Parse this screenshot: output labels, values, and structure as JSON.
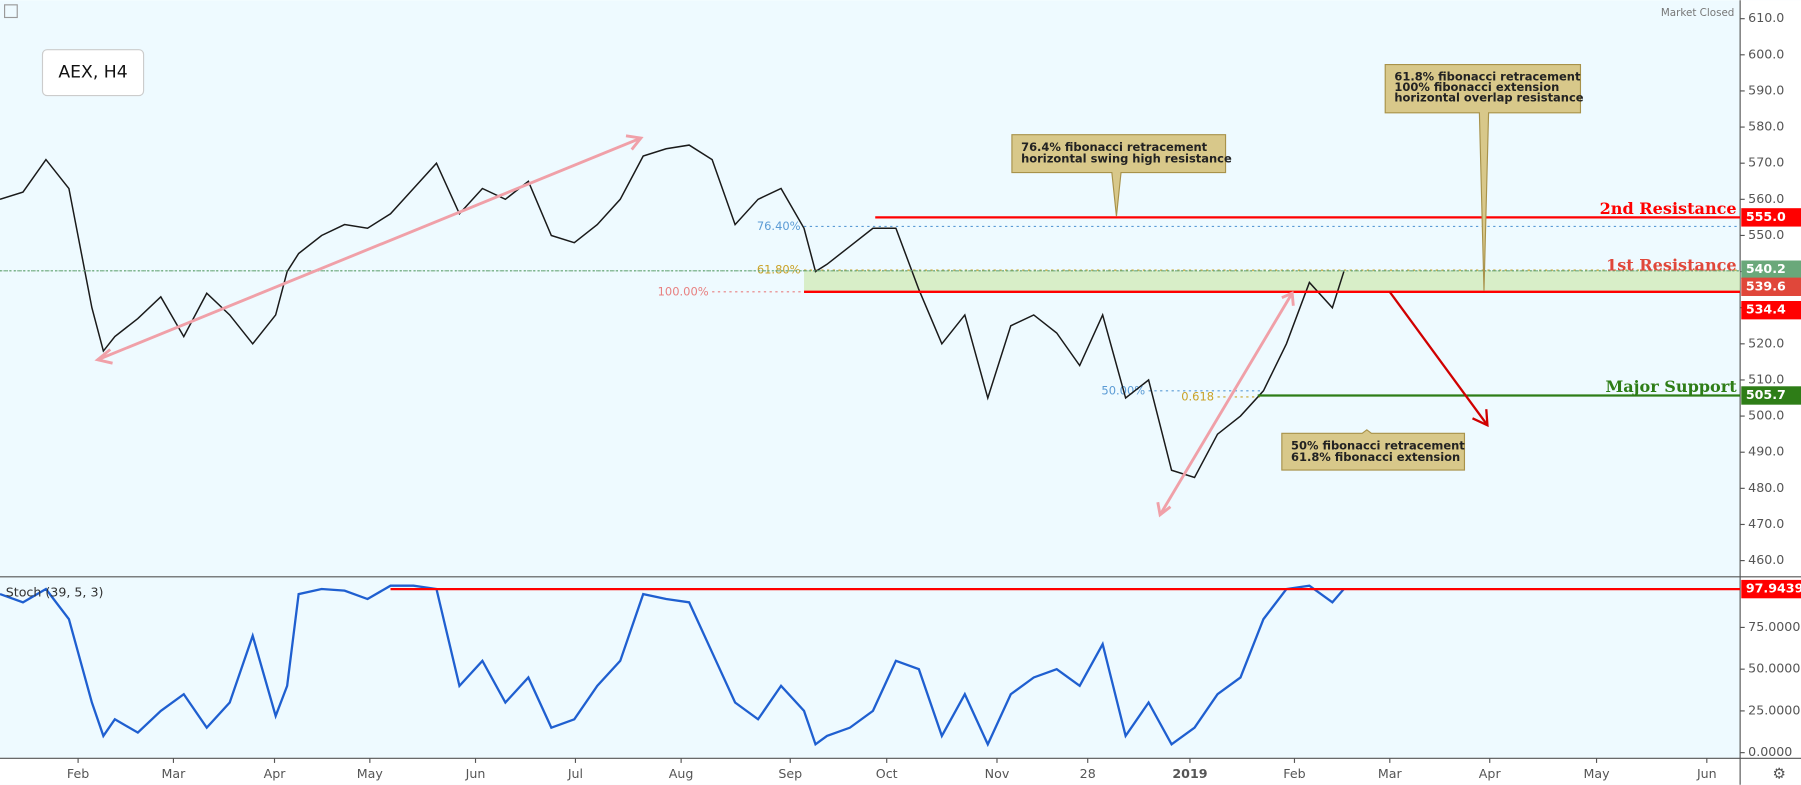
{
  "chart_data": [
    {
      "type": "line",
      "title": "AEX, H4",
      "status": "Market Closed",
      "color": "#1a1a1a",
      "x": [
        0,
        1,
        2,
        3,
        4,
        4.5,
        5,
        6,
        7,
        8,
        9,
        10,
        11,
        12,
        12.5,
        13,
        14,
        15,
        16,
        17,
        18,
        19,
        20,
        21,
        22,
        23,
        24,
        25,
        26,
        27,
        28,
        29,
        30,
        31,
        32,
        33,
        34,
        35,
        35.5,
        36,
        37,
        38,
        39,
        40,
        41,
        42,
        43,
        44,
        45,
        46,
        47,
        48,
        49,
        50,
        51,
        52,
        53,
        54,
        55,
        56,
        57,
        58,
        58.5
      ],
      "values": [
        560,
        562,
        571,
        563,
        530,
        518,
        522,
        527,
        533,
        522,
        534,
        528,
        520,
        528,
        540,
        545,
        550,
        553,
        552,
        556,
        563,
        570,
        556,
        563,
        560,
        565,
        550,
        548,
        553,
        560,
        572,
        574,
        575,
        571,
        553,
        560,
        563,
        552,
        540,
        542,
        547,
        552,
        552,
        535,
        520,
        528,
        505,
        525,
        528,
        523,
        514,
        528,
        505,
        510,
        485,
        483,
        495,
        500,
        507,
        520,
        537,
        530,
        540
      ],
      "xlim": [
        0,
        75.75
      ],
      "xticks": [
        {
          "value": 3.4,
          "label": "Feb"
        },
        {
          "value": 7.55,
          "label": "Mar"
        },
        {
          "value": 11.95,
          "label": "Apr"
        },
        {
          "value": 16.1,
          "label": "May"
        },
        {
          "value": 20.7,
          "label": "Jun"
        },
        {
          "value": 25.05,
          "label": "Jul"
        },
        {
          "value": 29.65,
          "label": "Aug"
        },
        {
          "value": 34.4,
          "label": "Sep"
        },
        {
          "value": 38.6,
          "label": "Oct"
        },
        {
          "value": 43.4,
          "label": "Nov"
        },
        {
          "value": 47.35,
          "label": "28"
        },
        {
          "value": 51.8,
          "label": "2019"
        },
        {
          "value": 56.35,
          "label": "Feb"
        },
        {
          "value": 60.5,
          "label": "Mar"
        },
        {
          "value": 64.85,
          "label": "Apr"
        },
        {
          "value": 69.5,
          "label": "May"
        },
        {
          "value": 74.3,
          "label": "Jun"
        }
      ],
      "ylim": [
        455.5,
        615.1
      ],
      "yticks": [
        {
          "value": 460,
          "label": "460.0"
        },
        {
          "value": 470,
          "label": "470.0"
        },
        {
          "value": 480,
          "label": "480.0"
        },
        {
          "value": 490,
          "label": "490.0"
        },
        {
          "value": 500,
          "label": "500.0"
        },
        {
          "value": 510,
          "label": "510.0"
        },
        {
          "value": 520,
          "label": "520.0"
        },
        {
          "value": 530,
          "label": "530.0"
        },
        {
          "value": 540,
          "label": "540.0"
        },
        {
          "value": 550,
          "label": "550.0"
        },
        {
          "value": 560,
          "label": "560.0"
        },
        {
          "value": 570,
          "label": "570.0"
        },
        {
          "value": 580,
          "label": "580.0"
        },
        {
          "value": 590,
          "label": "590.0"
        },
        {
          "value": 600,
          "label": "600.0"
        },
        {
          "value": 610,
          "label": "610.0"
        }
      ],
      "levels": [
        {
          "value": 555,
          "label": "555.0",
          "name": "2nd Resistance",
          "color": "#ff0000"
        },
        {
          "value": 540.2,
          "label": "540.2",
          "color": "#6aa87a"
        },
        {
          "value": 539.6,
          "label": "539.6",
          "name": "1st Resistance",
          "color": "#e0473a"
        },
        {
          "value": 534.4,
          "label": "534.4",
          "color": "#ff0000"
        },
        {
          "value": 505.7,
          "label": "505.7",
          "name": "Major Support",
          "color": "#2e7d17"
        }
      ],
      "fib_levels": [
        {
          "value": 552.5,
          "label": "76.40%",
          "color": "#5b9bd5"
        },
        {
          "value": 540.4,
          "label": "61.80%",
          "color": "#c9a227"
        },
        {
          "value": 534.4,
          "label": "100.00%",
          "color": "#e88080"
        },
        {
          "value": 507,
          "label": "50.00%",
          "color": "#5b9bd5"
        },
        {
          "value": 505.3,
          "label": "0.618",
          "color": "#c9a227"
        }
      ],
      "callouts": [
        {
          "lines": [
            "76.4% fibonacci retracement",
            "horizontal swing high resistance"
          ]
        },
        {
          "lines": [
            "61.8% fibonacci retracement",
            "100% fibonacci extension",
            "horizontal overlap resistance"
          ]
        },
        {
          "lines": [
            "50% fibonacci retracement",
            "61.8% fibonacci extension"
          ]
        }
      ]
    },
    {
      "type": "line",
      "title": "Stoch (39, 5, 3)",
      "color": "#1f5fd0",
      "x": [
        0,
        1,
        2,
        3,
        4,
        4.5,
        5,
        6,
        7,
        8,
        9,
        10,
        11,
        12,
        12.5,
        13,
        14,
        15,
        16,
        17,
        18,
        19,
        20,
        21,
        22,
        23,
        24,
        25,
        26,
        27,
        28,
        29,
        30,
        31,
        32,
        33,
        34,
        35,
        35.5,
        36,
        37,
        38,
        39,
        40,
        41,
        42,
        43,
        44,
        45,
        46,
        47,
        48,
        49,
        50,
        51,
        52,
        53,
        54,
        55,
        56,
        57,
        58,
        58.5
      ],
      "values": [
        95,
        90,
        98,
        80,
        30,
        10,
        20,
        12,
        25,
        35,
        15,
        30,
        70,
        22,
        40,
        95,
        98,
        97,
        92,
        100,
        100,
        98,
        40,
        55,
        30,
        45,
        15,
        20,
        40,
        55,
        95,
        92,
        90,
        60,
        30,
        20,
        40,
        25,
        5,
        10,
        15,
        25,
        55,
        50,
        10,
        35,
        5,
        35,
        45,
        50,
        40,
        65,
        10,
        30,
        5,
        15,
        35,
        45,
        80,
        98,
        100,
        90,
        98
      ],
      "xlim": [
        0,
        75.75
      ],
      "ylim": [
        -3.4,
        104.6
      ],
      "yticks": [
        {
          "value": 0,
          "label": "0.0000"
        },
        {
          "value": 25,
          "label": "25.0000"
        },
        {
          "value": 50,
          "label": "50.0000"
        },
        {
          "value": 75,
          "label": "75.0000"
        }
      ],
      "levels": [
        {
          "value": 97.9439,
          "label": "97.9439",
          "color": "#ff0000"
        }
      ]
    }
  ]
}
